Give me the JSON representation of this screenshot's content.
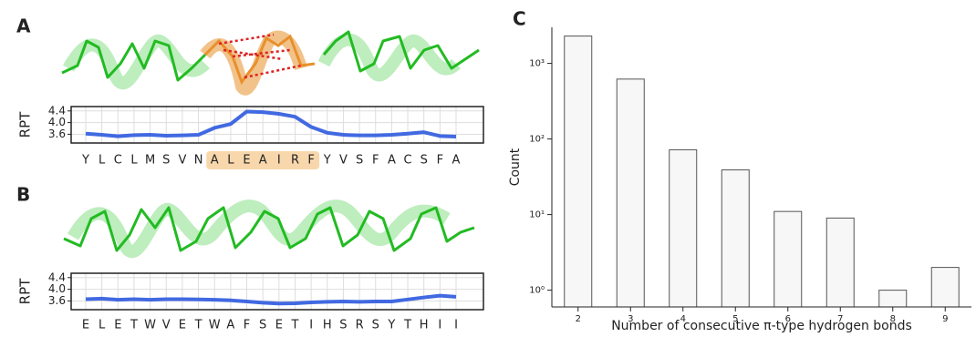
{
  "chart_data": [
    {
      "type": "line",
      "panel_label": "A",
      "ylabel": "RPT",
      "categories": [
        "Y",
        "L",
        "C",
        "L",
        "M",
        "S",
        "V",
        "N",
        "A",
        "L",
        "E",
        "A",
        "I",
        "R",
        "F",
        "Y",
        "V",
        "S",
        "F",
        "A",
        "C",
        "S",
        "F",
        "A"
      ],
      "values": [
        3.62,
        3.58,
        3.53,
        3.57,
        3.58,
        3.55,
        3.56,
        3.58,
        3.82,
        3.95,
        4.38,
        4.36,
        4.3,
        4.2,
        3.85,
        3.65,
        3.58,
        3.56,
        3.56,
        3.58,
        3.62,
        3.67,
        3.54,
        3.52
      ],
      "color": "#4169e1",
      "ylim": [
        3.3,
        4.55
      ],
      "yticks": [
        3.6,
        {
          "value": 4,
          "label": "4.0"
        },
        4.4
      ],
      "grid": true,
      "highlight_range": [
        8,
        14
      ],
      "highlight_color": "#f8d7ac"
    },
    {
      "type": "line",
      "panel_label": "B",
      "ylabel": "RPT",
      "categories": [
        "E",
        "L",
        "E",
        "T",
        "W",
        "V",
        "E",
        "T",
        "W",
        "A",
        "F",
        "S",
        "E",
        "T",
        "I",
        "H",
        "S",
        "R",
        "S",
        "Y",
        "T",
        "H",
        "I",
        "I"
      ],
      "values": [
        3.66,
        3.68,
        3.64,
        3.66,
        3.64,
        3.66,
        3.66,
        3.65,
        3.64,
        3.62,
        3.58,
        3.54,
        3.51,
        3.52,
        3.55,
        3.57,
        3.58,
        3.57,
        3.58,
        3.58,
        3.65,
        3.72,
        3.78,
        3.74
      ],
      "color": "#4169e1",
      "ylim": [
        3.3,
        4.55
      ],
      "yticks": [
        3.6,
        {
          "value": 4,
          "label": "4.0"
        },
        4.4
      ],
      "grid": true
    },
    {
      "type": "bar",
      "panel_label": "C",
      "xlabel": "Number of consecutive π-type hydrogen bonds",
      "ylabel": "Count",
      "categories": [
        "2",
        "3",
        "4",
        "5",
        "6",
        "7",
        "8",
        "9"
      ],
      "values": [
        2300,
        620,
        72,
        39,
        11,
        9,
        1,
        2
      ],
      "color": "#f7f7f7",
      "edge_color": "#555555",
      "log_y": true,
      "ylim": [
        0.6,
        3000
      ],
      "yticks": [
        {
          "value": 1,
          "label": "10⁰"
        },
        {
          "value": 10,
          "label": "10¹"
        },
        {
          "value": 100,
          "label": "10²"
        },
        {
          "value": 1000,
          "label": "10³"
        }
      ]
    }
  ]
}
